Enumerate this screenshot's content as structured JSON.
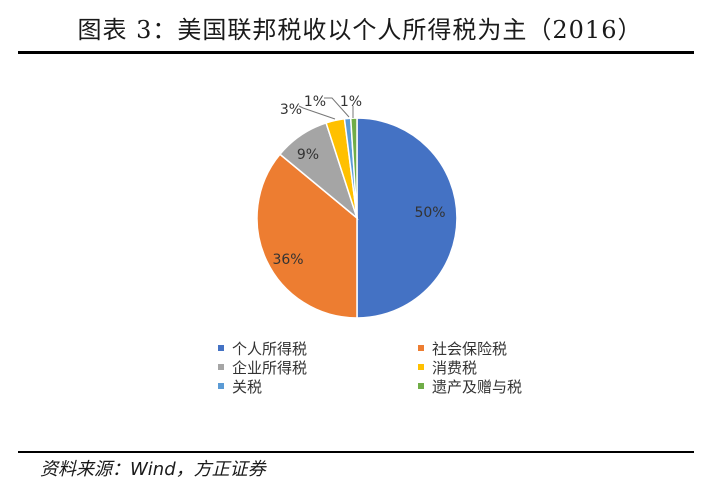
{
  "title": "图表 3：美国联邦税收以个人所得税为主（2016）",
  "source": "资料来源：Wind，方正证券",
  "chart_data": {
    "type": "pie",
    "categories": [
      "个人所得税",
      "社会保险税",
      "企业所得税",
      "消费税",
      "关税",
      "遗产及赠与税"
    ],
    "values": [
      50,
      36,
      9,
      3,
      1,
      1
    ],
    "labels": [
      "50%",
      "36%",
      "9%",
      "3%",
      "1%",
      "1%"
    ],
    "colors": [
      "#4472C4",
      "#ED7D31",
      "#A5A5A5",
      "#FFC000",
      "#5B9BD5",
      "#70AD47"
    ],
    "legend_position": "bottom"
  }
}
